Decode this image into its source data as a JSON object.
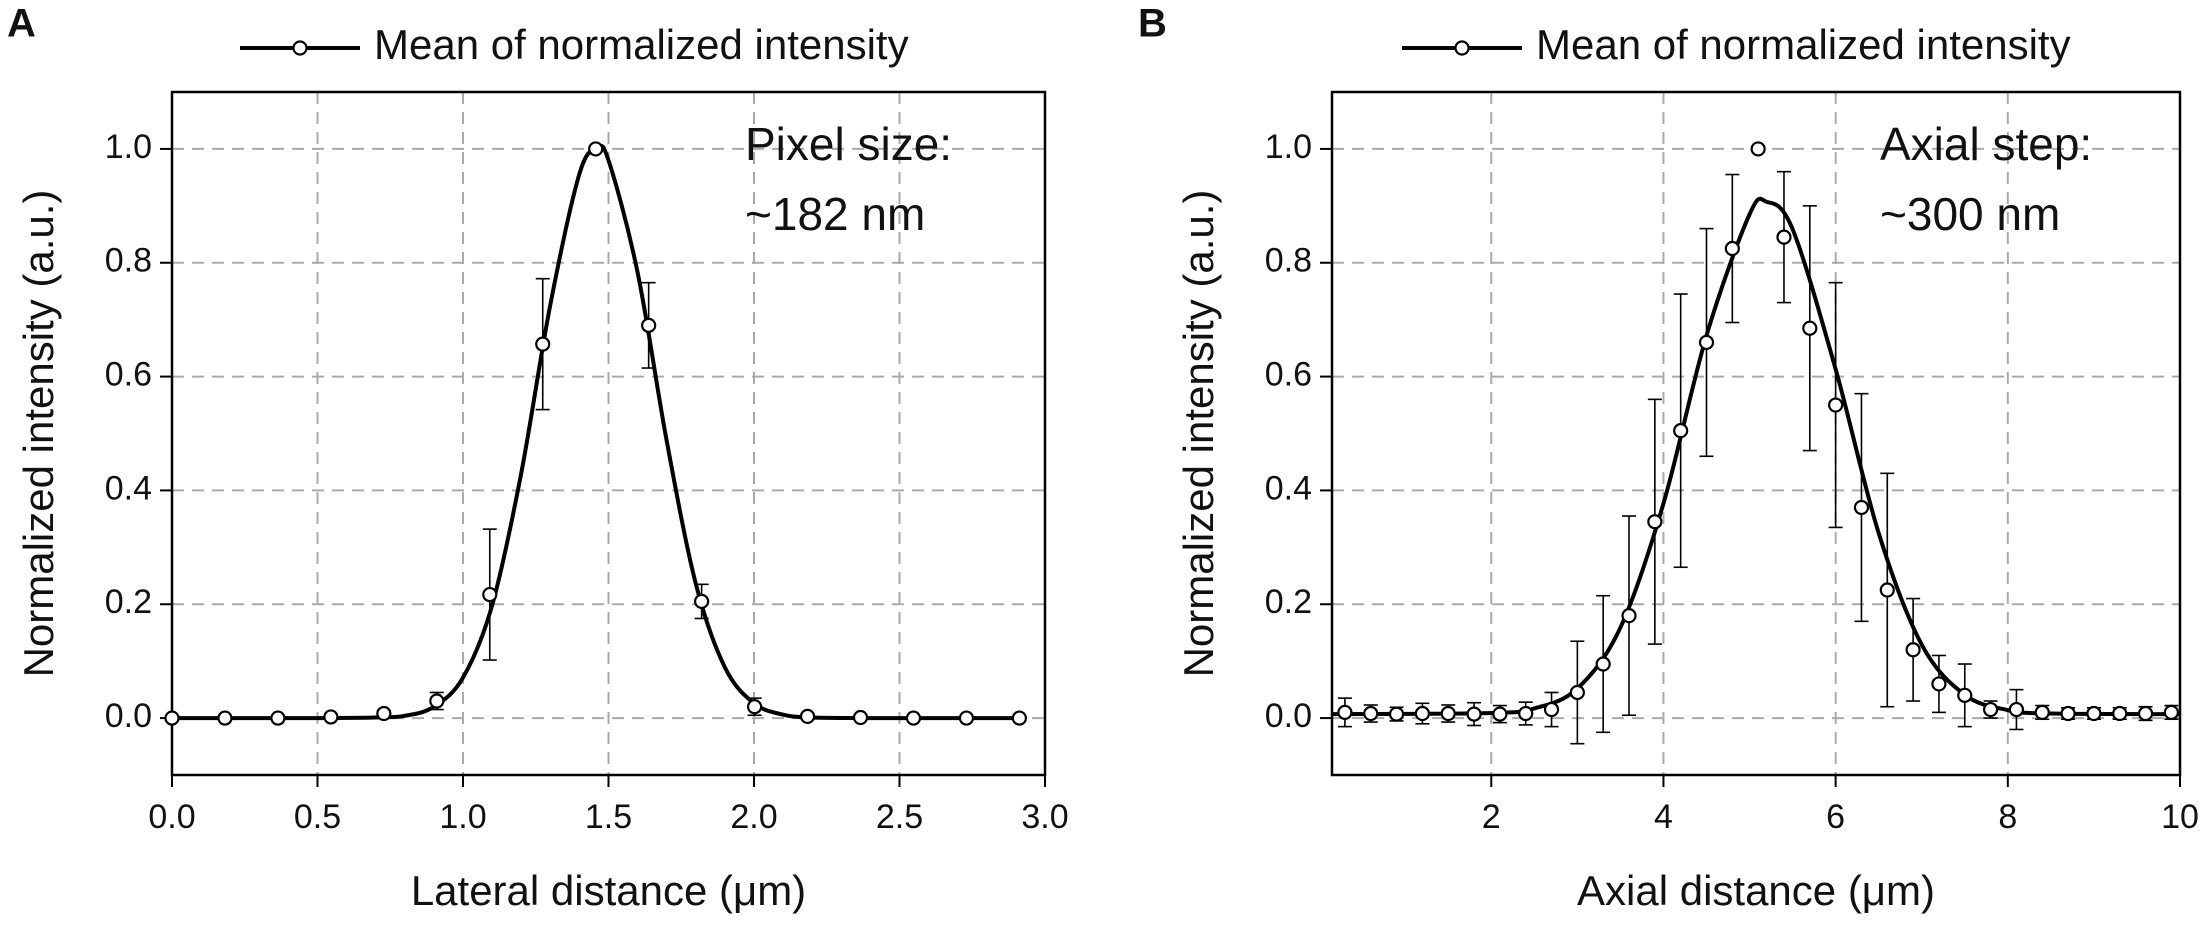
{
  "chart_data": [
    {
      "type": "line",
      "panel": "A",
      "x_label": "Lateral distance (μm)",
      "y_label": "Normalized intensity (a.u.)",
      "annotation": [
        "Pixel size:",
        "~182 nm"
      ],
      "xlim": [
        0,
        3
      ],
      "ylim": [
        -0.1,
        1.1
      ],
      "xticks": [
        {
          "value": 0,
          "label": "0.0"
        },
        {
          "value": 0.5,
          "label": "0.5"
        },
        {
          "value": 1,
          "label": "1.0"
        },
        {
          "value": 1.5,
          "label": "1.5"
        },
        {
          "value": 2,
          "label": "2.0"
        },
        {
          "value": 2.5,
          "label": "2.5"
        },
        {
          "value": 3,
          "label": "3.0"
        }
      ],
      "yticks": [
        {
          "value": 0,
          "label": "0.0"
        },
        {
          "value": 0.2,
          "label": "0.2"
        },
        {
          "value": 0.4,
          "label": "0.4"
        },
        {
          "value": 0.6,
          "label": "0.6"
        },
        {
          "value": 0.8,
          "label": "0.8"
        },
        {
          "value": 1,
          "label": "1.0"
        }
      ],
      "grid": true,
      "legend": "top",
      "series": [
        {
          "name": "Mean of normalized intensity",
          "color": "#000000",
          "x": [
            0,
            0.182,
            0.364,
            0.546,
            0.728,
            0.91,
            1.092,
            1.274,
            1.456,
            1.638,
            1.82,
            2.002,
            2.184,
            2.366,
            2.548,
            2.73,
            2.912
          ],
          "values": [
            0,
            0,
            0,
            0.002,
            0.008,
            0.03,
            0.217,
            0.657,
            1.0,
            0.69,
            0.205,
            0.02,
            0.003,
            0.001,
            0,
            0,
            0
          ],
          "errors": [
            0,
            0,
            0,
            0.003,
            0.005,
            0.015,
            0.115,
            0.115,
            0,
            0.075,
            0.03,
            0.015,
            0.005,
            0.003,
            0,
            0,
            0
          ]
        }
      ],
      "fit": {
        "x": [
          0,
          0.5,
          0.7,
          0.8,
          0.9,
          1.0,
          1.1,
          1.2,
          1.3,
          1.4,
          1.46,
          1.5,
          1.6,
          1.7,
          1.8,
          1.9,
          2.0,
          2.1,
          2.2,
          2.4,
          2.912
        ],
        "values": [
          0,
          0,
          0.001,
          0.004,
          0.02,
          0.071,
          0.198,
          0.43,
          0.726,
          0.956,
          1.0,
          0.98,
          0.783,
          0.487,
          0.236,
          0.089,
          0.026,
          0.006,
          0.001,
          0,
          0
        ]
      }
    },
    {
      "type": "line",
      "panel": "B",
      "x_label": "Axial distance (μm)",
      "y_label": "Normalized intensity (a.u.)",
      "annotation": [
        "Axial step:",
        "~300 nm"
      ],
      "xlim": [
        0.15,
        10
      ],
      "ylim": [
        -0.1,
        1.1
      ],
      "xticks": [
        2,
        4,
        6,
        8,
        10
      ],
      "yticks": [
        {
          "value": 0,
          "label": "0.0"
        },
        {
          "value": 0.2,
          "label": "0.2"
        },
        {
          "value": 0.4,
          "label": "0.4"
        },
        {
          "value": 0.6,
          "label": "0.6"
        },
        {
          "value": 0.8,
          "label": "0.8"
        },
        {
          "value": 1,
          "label": "1.0"
        }
      ],
      "grid": true,
      "legend": "top",
      "series": [
        {
          "name": "Mean of normalized intensity",
          "color": "#000000",
          "x": [
            0.3,
            0.6,
            0.9,
            1.2,
            1.5,
            1.8,
            2.1,
            2.4,
            2.7,
            3.0,
            3.3,
            3.6,
            3.9,
            4.2,
            4.5,
            4.8,
            5.1,
            5.4,
            5.7,
            6.0,
            6.3,
            6.6,
            6.9,
            7.2,
            7.5,
            7.8,
            8.1,
            8.4,
            8.7,
            9.0,
            9.3,
            9.6,
            9.9
          ],
          "values": [
            0.01,
            0.008,
            0.007,
            0.008,
            0.008,
            0.007,
            0.007,
            0.008,
            0.015,
            0.045,
            0.095,
            0.18,
            0.345,
            0.505,
            0.66,
            0.825,
            1.0,
            0.845,
            0.685,
            0.55,
            0.37,
            0.225,
            0.12,
            0.06,
            0.04,
            0.015,
            0.015,
            0.01,
            0.008,
            0.008,
            0.008,
            0.008,
            0.01
          ],
          "errors": [
            0.025,
            0.015,
            0.012,
            0.018,
            0.015,
            0.02,
            0.015,
            0.02,
            0.03,
            0.09,
            0.12,
            0.175,
            0.215,
            0.24,
            0.2,
            0.13,
            0,
            0.115,
            0.215,
            0.215,
            0.2,
            0.205,
            0.09,
            0.05,
            0.055,
            0.015,
            0.035,
            0.012,
            0.01,
            0.01,
            0.01,
            0.012,
            0.012
          ]
        }
      ],
      "fit": {
        "x": [
          0.15,
          2.0,
          2.5,
          3.0,
          3.5,
          4.0,
          4.5,
          5.0,
          5.2,
          5.5,
          6.0,
          6.5,
          7.0,
          7.5,
          8.0,
          8.5,
          10
        ],
        "values": [
          0.007,
          0.009,
          0.017,
          0.052,
          0.159,
          0.377,
          0.672,
          0.885,
          0.907,
          0.859,
          0.613,
          0.325,
          0.129,
          0.041,
          0.014,
          0.008,
          0.007
        ]
      }
    }
  ]
}
